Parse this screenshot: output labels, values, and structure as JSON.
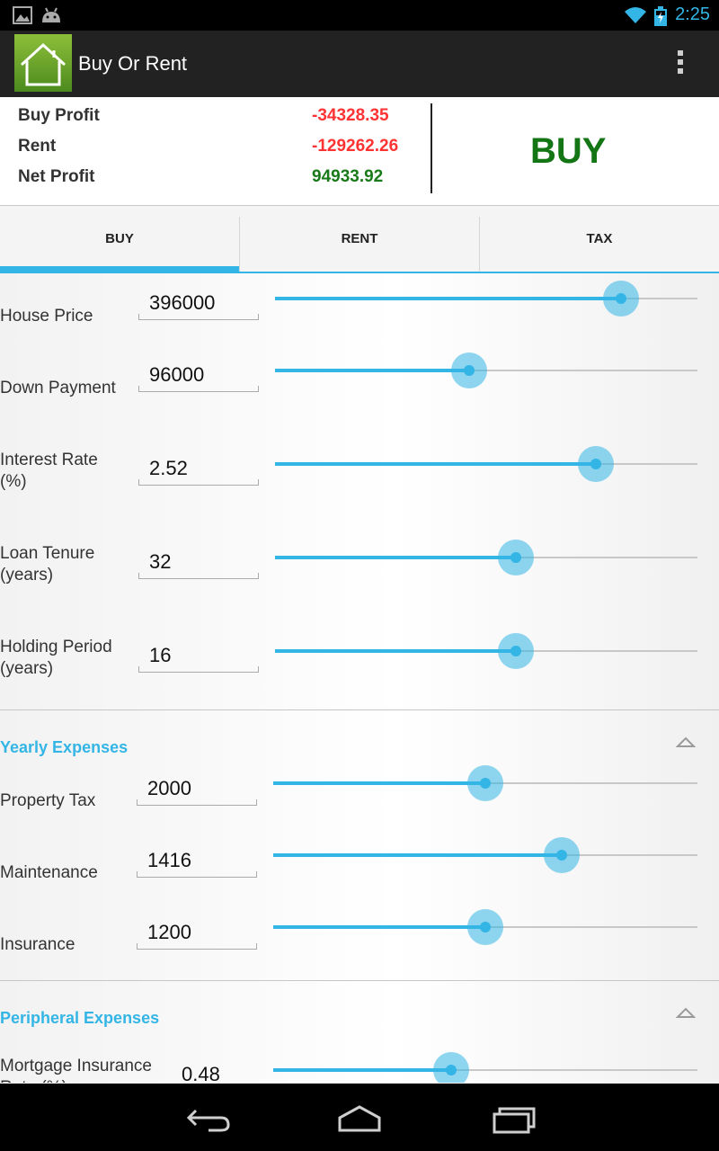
{
  "status_bar": {
    "time": "2:25",
    "icons": [
      "image-icon",
      "android-icon",
      "wifi-icon",
      "battery-charging-icon"
    ]
  },
  "app": {
    "title": "Buy Or Rent",
    "icon": "house-icon"
  },
  "summary": {
    "buy_profit_label": "Buy Profit",
    "buy_profit_value": "-34328.35",
    "rent_label": "Rent",
    "rent_value": "-129262.26",
    "net_profit_label": "Net Profit",
    "net_profit_value": "94933.92",
    "verdict": "BUY",
    "colors": {
      "negative": "#ff3333",
      "positive": "#1a7a1a",
      "verdict": "#137513"
    }
  },
  "tabs": [
    {
      "label": "BUY",
      "active": true
    },
    {
      "label": "RENT",
      "active": false
    },
    {
      "label": "TAX",
      "active": false
    }
  ],
  "buy_fields": [
    {
      "label": "House Price",
      "value": "396000",
      "level": 0.82
    },
    {
      "label": "Down Payment",
      "value": "96000",
      "level": 0.46
    },
    {
      "label": "Interest Rate (%)",
      "value": "2.52",
      "level": 0.76
    },
    {
      "label": "Loan Tenure (years)",
      "value": "32",
      "level": 0.57
    },
    {
      "label": "Holding Period (years)",
      "value": "16",
      "level": 0.57
    }
  ],
  "yearly_expenses": {
    "title": "Yearly Expenses",
    "fields": [
      {
        "label": "Property Tax",
        "value": "2000",
        "level": 0.5
      },
      {
        "label": "Maintenance",
        "value": "1416",
        "level": 0.68
      },
      {
        "label": "Insurance",
        "value": "1200",
        "level": 0.5
      }
    ]
  },
  "peripheral_expenses": {
    "title": "Peripheral Expenses",
    "fields": [
      {
        "label": "Mortgage Insurance Rate (%)",
        "value": "0.48",
        "level": 0.42
      }
    ]
  },
  "accent_color": "#33b5e5"
}
